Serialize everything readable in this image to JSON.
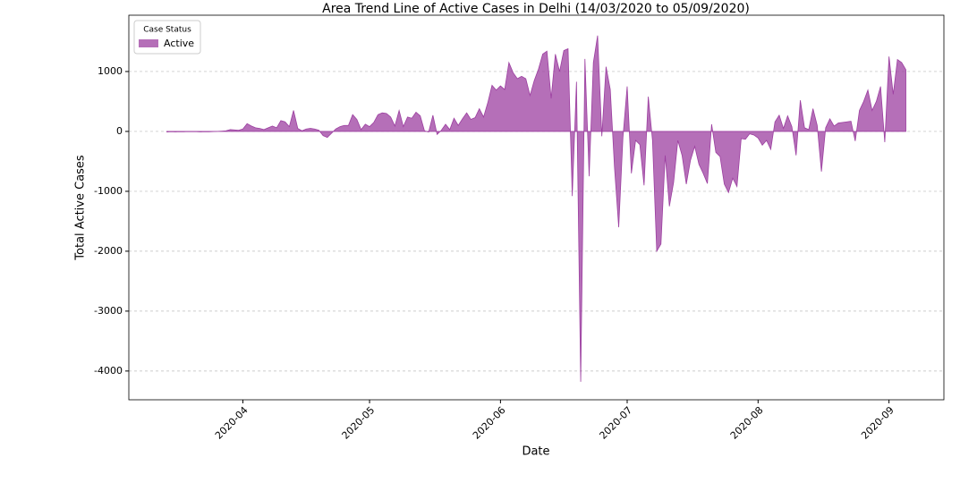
{
  "chart_data": {
    "type": "area",
    "title": "Area Trend Line of Active Cases in Delhi (14/03/2020 to 05/09/2020)",
    "x_label": "Date",
    "y_label": "Total Active Cases",
    "legend_title": "Case Status",
    "legend": "upper left",
    "grid": true,
    "xlim": [
      "2020-03-05",
      "2020-09-14"
    ],
    "xticks": [
      {
        "value": "2020-04-01",
        "label": "2020-04"
      },
      {
        "value": "2020-05-01",
        "label": "2020-05"
      },
      {
        "value": "2020-06-01",
        "label": "2020-06"
      },
      {
        "value": "2020-07-01",
        "label": "2020-07"
      },
      {
        "value": "2020-08-01",
        "label": "2020-08"
      },
      {
        "value": "2020-09-01",
        "label": "2020-09"
      }
    ],
    "ylim": [
      -4480,
      1940
    ],
    "yticks": [
      -4000,
      -3000,
      -2000,
      -1000,
      0,
      1000
    ],
    "start": "2020-03-14",
    "series": [
      {
        "name": "Active",
        "color": "#9c3fa0",
        "values": [
          -10,
          -5,
          -8,
          -5,
          -6,
          -3,
          -5,
          -4,
          -8,
          -5,
          -6,
          -3,
          0,
          5,
          10,
          30,
          25,
          20,
          40,
          130,
          90,
          60,
          50,
          30,
          60,
          90,
          60,
          180,
          160,
          80,
          350,
          50,
          10,
          40,
          50,
          40,
          20,
          -70,
          -100,
          -30,
          40,
          80,
          100,
          100,
          280,
          200,
          30,
          120,
          80,
          150,
          280,
          310,
          300,
          240,
          90,
          350,
          80,
          240,
          220,
          320,
          260,
          10,
          -10,
          270,
          -50,
          20,
          120,
          30,
          220,
          100,
          210,
          310,
          200,
          230,
          380,
          240,
          480,
          770,
          690,
          760,
          700,
          1150,
          980,
          880,
          920,
          880,
          600,
          850,
          1040,
          1290,
          1340,
          550,
          1290,
          1000,
          1350,
          1380,
          -1080,
          830,
          -4180,
          1210,
          -750,
          1150,
          1600,
          -80,
          1080,
          700,
          -600,
          -1600,
          -100,
          750,
          -700,
          -150,
          -220,
          -900,
          580,
          -150,
          -2000,
          -1880,
          -400,
          -1250,
          -850,
          -150,
          -400,
          -880,
          -480,
          -250,
          -550,
          -700,
          -870,
          120,
          -350,
          -420,
          -880,
          -1020,
          -780,
          -920,
          -120,
          -130,
          -40,
          -60,
          -110,
          -230,
          -150,
          -300,
          160,
          270,
          50,
          260,
          80,
          -400,
          520,
          60,
          30,
          380,
          100,
          -670,
          60,
          210,
          90,
          140,
          150,
          160,
          170,
          -160,
          350,
          500,
          690,
          350,
          500,
          750,
          -180,
          1250,
          620,
          1200,
          1150,
          1030
        ]
      }
    ]
  }
}
